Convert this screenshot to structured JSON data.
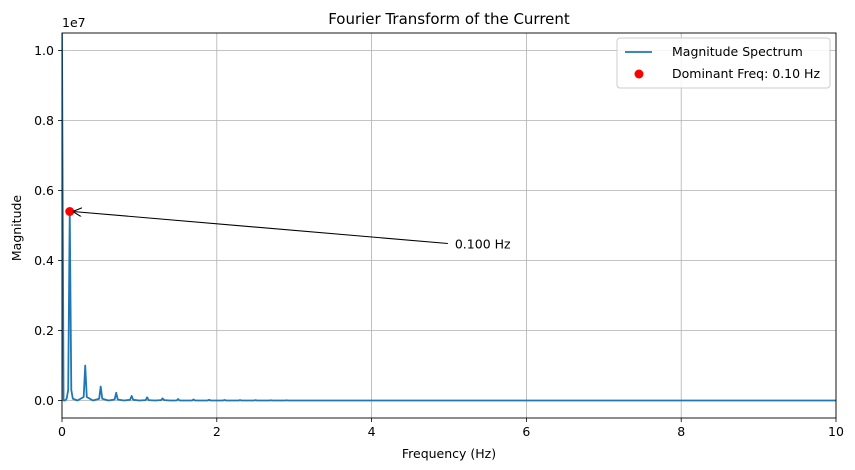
{
  "chart_data": {
    "type": "line",
    "title": "Fourier Transform of the Current",
    "xlabel": "Frequency (Hz)",
    "ylabel": "Magnitude",
    "y_scale_note": "1e7",
    "xlim": [
      0,
      10
    ],
    "ylim": [
      -0.05,
      1.05
    ],
    "y_unit_multiplier": 10000000,
    "x_ticks": [
      0,
      2,
      4,
      6,
      8,
      10
    ],
    "x_tick_labels": [
      "0",
      "2",
      "4",
      "6",
      "8",
      "10"
    ],
    "y_ticks": [
      0.0,
      0.2,
      0.4,
      0.6,
      0.8,
      1.0
    ],
    "y_tick_labels": [
      "0.0",
      "0.2",
      "0.4",
      "0.6",
      "0.8",
      "1.0"
    ],
    "grid": true,
    "legend_position": "top-right",
    "series": [
      {
        "name": "Magnitude Spectrum",
        "color": "#1f77b4",
        "kind": "line",
        "x": [
          0.0,
          0.02,
          0.04,
          0.06,
          0.08,
          0.1,
          0.12,
          0.14,
          0.2,
          0.28,
          0.3,
          0.32,
          0.4,
          0.48,
          0.5,
          0.52,
          0.6,
          0.68,
          0.7,
          0.72,
          0.8,
          0.88,
          0.9,
          0.92,
          1.0,
          1.08,
          1.1,
          1.12,
          1.2,
          1.28,
          1.3,
          1.32,
          1.4,
          1.48,
          1.5,
          1.52,
          1.6,
          1.68,
          1.7,
          1.72,
          1.8,
          1.88,
          1.9,
          1.92,
          2.0,
          2.08,
          2.1,
          2.12,
          2.28,
          2.3,
          2.32,
          2.48,
          2.5,
          2.52,
          2.68,
          2.7,
          2.72,
          2.88,
          2.9,
          2.92,
          3.5,
          10.0
        ],
        "y": [
          1.05,
          0.0,
          0.0,
          0.005,
          0.03,
          0.54,
          0.03,
          0.005,
          0.0,
          0.01,
          0.1,
          0.01,
          0.0,
          0.005,
          0.04,
          0.005,
          0.0,
          0.003,
          0.022,
          0.003,
          0.0,
          0.002,
          0.013,
          0.002,
          0.0,
          0.001,
          0.009,
          0.001,
          0.0,
          0.001,
          0.006,
          0.001,
          0.0,
          0.0,
          0.004,
          0.0,
          0.0,
          0.0,
          0.003,
          0.0,
          0.0,
          0.0,
          0.002,
          0.0,
          0.0,
          0.0,
          0.0015,
          0.0,
          0.0,
          0.0012,
          0.0,
          0.0,
          0.001,
          0.0,
          0.0,
          0.0008,
          0.0,
          0.0,
          0.0006,
          0.0,
          0.0,
          0.0
        ]
      },
      {
        "name": "Dominant Freq: 0.10 Hz",
        "color": "#ff0000",
        "kind": "scatter",
        "x": [
          0.1
        ],
        "y": [
          0.54
        ]
      }
    ],
    "annotation": {
      "text": "0.100 Hz",
      "point": [
        0.1,
        0.54
      ],
      "text_pos": [
        5.05,
        0.44
      ]
    }
  }
}
